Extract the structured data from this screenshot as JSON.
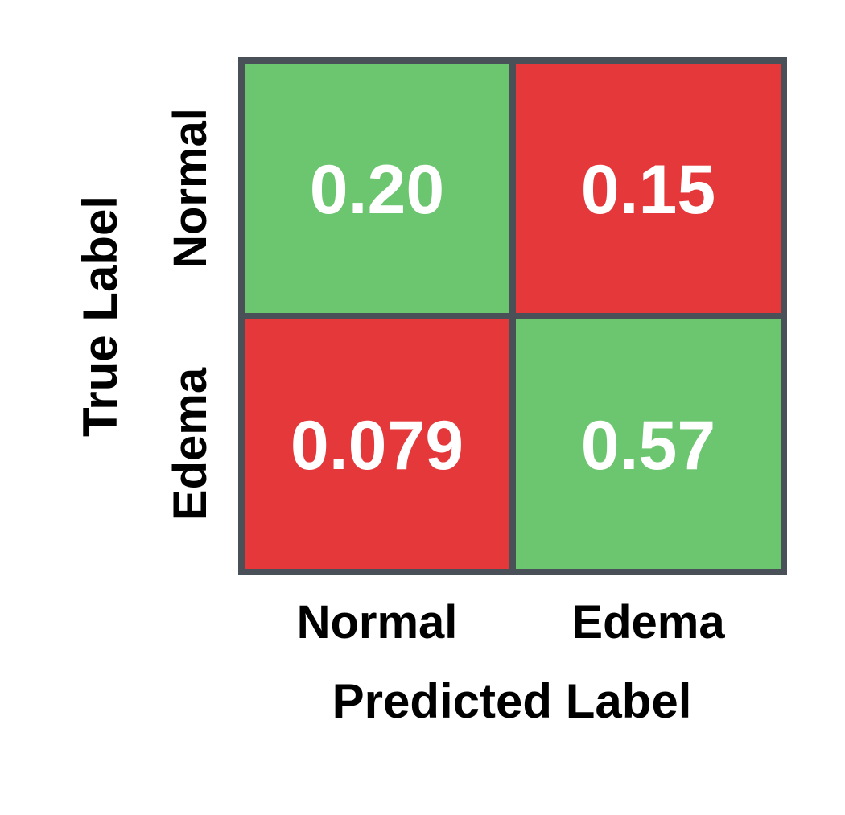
{
  "chart_data": {
    "type": "heatmap",
    "x_categories": [
      "Normal",
      "Edema"
    ],
    "y_categories": [
      "Normal",
      "Edema"
    ],
    "values": [
      [
        0.2,
        0.15
      ],
      [
        0.079,
        0.57
      ]
    ],
    "value_labels": [
      [
        "0.20",
        "0.15"
      ],
      [
        "0.079",
        "0.57"
      ]
    ],
    "xlabel": "Predicted Label",
    "ylabel": "True Label",
    "grid": false,
    "legend": "none",
    "colors": {
      "correct": "#6cc56f",
      "incorrect": "#e5383a",
      "border": "#4a5058",
      "cell_text": "#ffffff"
    }
  }
}
